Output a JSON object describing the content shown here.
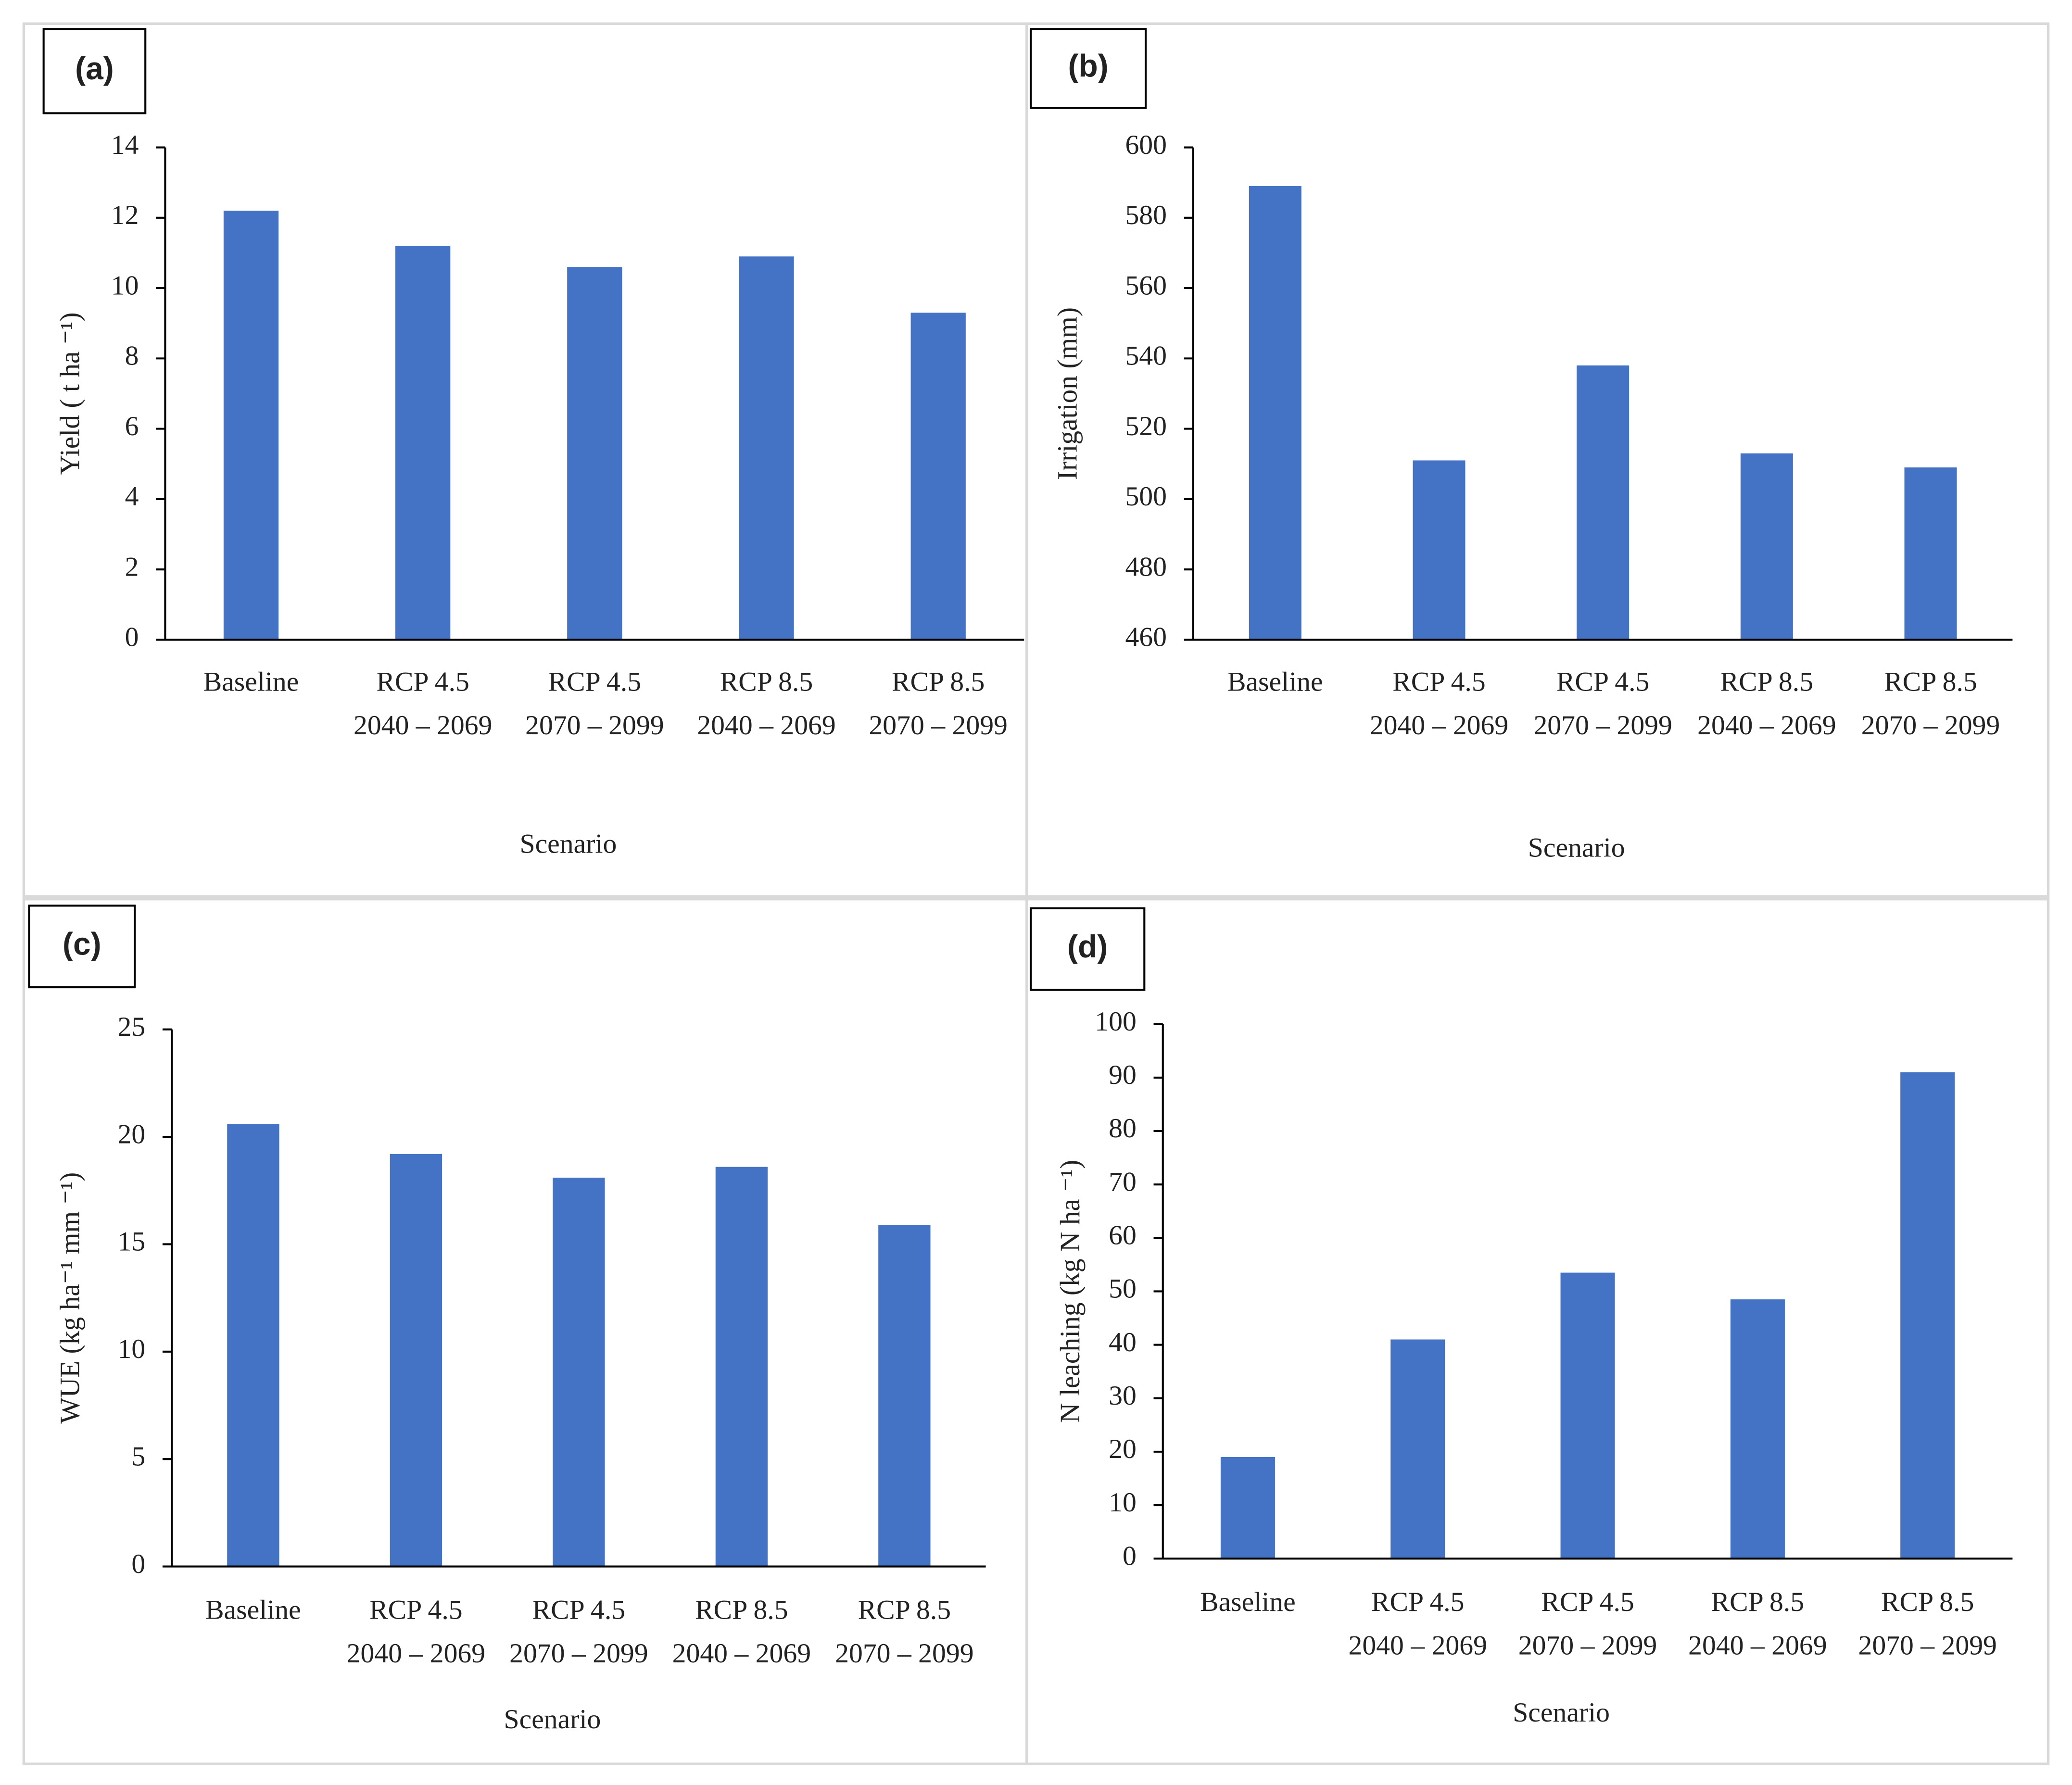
{
  "chart_data": [
    {
      "type": "bar",
      "panel_label": "(a)",
      "y_label": "Yield ( t ha ⁻¹)",
      "x_label": "Scenario",
      "categories": [
        [
          "Baseline"
        ],
        [
          "RCP 4.5",
          "2040 – 2069"
        ],
        [
          "RCP 4.5",
          "2070 – 2099"
        ],
        [
          "RCP 8.5",
          "2040 – 2069"
        ],
        [
          "RCP 8.5",
          "2070 – 2099"
        ]
      ],
      "values": [
        12.2,
        11.2,
        10.6,
        10.9,
        9.3
      ],
      "color": "#4472c4",
      "ylim": [
        0,
        14
      ],
      "yticks": [
        0,
        2,
        4,
        6,
        8,
        10,
        12,
        14
      ]
    },
    {
      "type": "bar",
      "panel_label": "(b)",
      "y_label": "Irrigation (mm)",
      "x_label": "Scenario",
      "categories": [
        [
          "Baseline"
        ],
        [
          "RCP 4.5",
          "2040 – 2069"
        ],
        [
          "RCP 4.5",
          "2070 – 2099"
        ],
        [
          "RCP 8.5",
          "2040 – 2069"
        ],
        [
          "RCP 8.5",
          "2070 – 2099"
        ]
      ],
      "values": [
        589,
        511,
        538,
        513,
        509
      ],
      "color": "#4472c4",
      "ylim": [
        460,
        600
      ],
      "yticks": [
        460,
        480,
        500,
        520,
        540,
        560,
        580,
        600
      ]
    },
    {
      "type": "bar",
      "panel_label": "(c)",
      "y_label": "WUE (kg ha⁻¹ mm ⁻¹)",
      "x_label": "Scenario",
      "categories": [
        [
          "Baseline"
        ],
        [
          "RCP 4.5",
          "2040 – 2069"
        ],
        [
          "RCP 4.5",
          "2070 – 2099"
        ],
        [
          "RCP 8.5",
          "2040 – 2069"
        ],
        [
          "RCP 8.5",
          "2070 – 2099"
        ]
      ],
      "values": [
        20.6,
        19.2,
        18.1,
        18.6,
        15.9
      ],
      "color": "#4472c4",
      "ylim": [
        0,
        25
      ],
      "yticks": [
        0,
        5,
        10,
        15,
        20,
        25
      ]
    },
    {
      "type": "bar",
      "panel_label": "(d)",
      "y_label": "N leaching (kg N ha ⁻¹)",
      "x_label": "Scenario",
      "categories": [
        [
          "Baseline"
        ],
        [
          "RCP 4.5",
          "2040 – 2069"
        ],
        [
          "RCP 4.5",
          "2070 – 2099"
        ],
        [
          "RCP 8.5",
          "2040 – 2069"
        ],
        [
          "RCP 8.5",
          "2070 – 2099"
        ]
      ],
      "values": [
        19,
        41,
        53.5,
        48.5,
        91
      ],
      "color": "#4472c4",
      "ylim": [
        0,
        100
      ],
      "yticks": [
        0,
        10,
        20,
        30,
        40,
        50,
        60,
        70,
        80,
        90,
        100
      ]
    }
  ]
}
